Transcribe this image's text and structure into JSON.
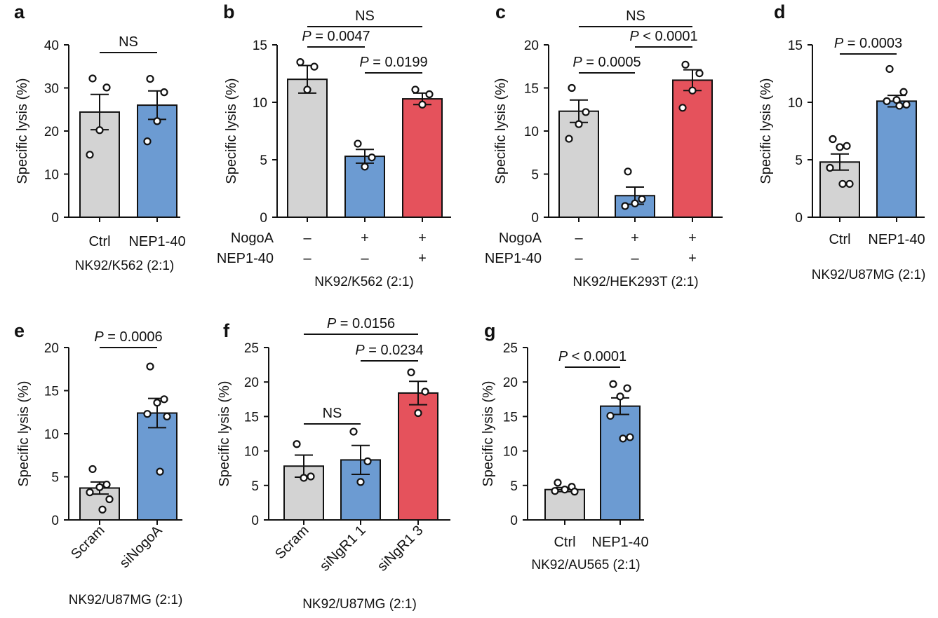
{
  "colors": {
    "grey": "#d3d3d3",
    "blue": "#6c9bd2",
    "red": "#e5525c",
    "ink": "#111111"
  },
  "chart_data": [
    {
      "id": "a",
      "type": "bar",
      "panel_letter": "a",
      "title": "",
      "xlabel": "NK92/K562 (2:1)",
      "ylabel": "Specific lysis (%)",
      "ylim": [
        0,
        40
      ],
      "yticks": [
        "0",
        "10",
        "20",
        "30",
        "40"
      ],
      "categories": [
        "Ctrl",
        "NEP1-40"
      ],
      "category_style": "horizontal",
      "colors": [
        "#d3d3d3",
        "#6c9bd2"
      ],
      "means": [
        24.4,
        26.0
      ],
      "sem": [
        4.1,
        3.3
      ],
      "points": [
        [
          32.2,
          30.1,
          20.2,
          14.5
        ],
        [
          32.1,
          29.0,
          22.3,
          17.6
        ]
      ],
      "comparisons": [
        {
          "from": 0,
          "to": 1,
          "label": "NS",
          "level": 1
        }
      ],
      "row_labels": []
    },
    {
      "id": "b",
      "type": "bar",
      "panel_letter": "b",
      "title": "",
      "xlabel": "NK92/K562 (2:1)",
      "ylabel": "Specific lysis (%)",
      "ylim": [
        0,
        15
      ],
      "yticks": [
        "0",
        "5",
        "10",
        "15"
      ],
      "categories": [
        "",
        "",
        ""
      ],
      "category_style": "none",
      "colors": [
        "#d3d3d3",
        "#6c9bd2",
        "#e5525c"
      ],
      "means": [
        12.0,
        5.3,
        10.3
      ],
      "sem": [
        1.2,
        0.6,
        0.5
      ],
      "points": [
        [
          13.5,
          13.1,
          11.1
        ],
        [
          6.4,
          5.2,
          4.4
        ],
        [
          11.1,
          10.7,
          9.8
        ]
      ],
      "comparisons": [
        {
          "from": 1,
          "to": 2,
          "label": "P = 0.0199",
          "level": 1
        },
        {
          "from": 0,
          "to": 1,
          "label": "P = 0.0047",
          "level": 2
        },
        {
          "from": 0,
          "to": 2,
          "label": "NS",
          "level": 3
        }
      ],
      "row_labels": [
        {
          "name": "NogoA",
          "values": [
            "–",
            "+",
            "+"
          ]
        },
        {
          "name": "NEP1-40",
          "values": [
            "–",
            "–",
            "+"
          ]
        }
      ]
    },
    {
      "id": "c",
      "type": "bar",
      "panel_letter": "c",
      "title": "",
      "xlabel": "NK92/HEK293T (2:1)",
      "ylabel": "Specific lysis (%)",
      "ylim": [
        0,
        20
      ],
      "yticks": [
        "0",
        "5",
        "10",
        "15",
        "20"
      ],
      "categories": [
        "",
        "",
        ""
      ],
      "category_style": "none",
      "colors": [
        "#d3d3d3",
        "#6c9bd2",
        "#e5525c"
      ],
      "means": [
        12.3,
        2.5,
        15.9
      ],
      "sem": [
        1.3,
        1.0,
        1.2
      ],
      "points": [
        [
          15.0,
          12.2,
          10.8,
          9.1
        ],
        [
          5.3,
          2.1,
          1.6,
          1.3
        ],
        [
          17.7,
          16.7,
          14.7,
          12.7
        ]
      ],
      "comparisons": [
        {
          "from": 0,
          "to": 1,
          "label": "P = 0.0005",
          "level": 1
        },
        {
          "from": 1,
          "to": 2,
          "label": "P < 0.0001",
          "level": 2
        },
        {
          "from": 0,
          "to": 2,
          "label": "NS",
          "level": 3
        }
      ],
      "row_labels": [
        {
          "name": "NogoA",
          "values": [
            "–",
            "+",
            "+"
          ]
        },
        {
          "name": "NEP1-40",
          "values": [
            "–",
            "–",
            "+"
          ]
        }
      ]
    },
    {
      "id": "d",
      "type": "bar",
      "panel_letter": "d",
      "title": "",
      "xlabel": "NK92/U87MG (2:1)",
      "ylabel": "Specific lysis (%)",
      "ylim": [
        0,
        15
      ],
      "yticks": [
        "0",
        "5",
        "10",
        "15"
      ],
      "categories": [
        "Ctrl",
        "NEP1-40"
      ],
      "category_style": "horizontal",
      "colors": [
        "#d3d3d3",
        "#6c9bd2"
      ],
      "means": [
        4.8,
        10.1
      ],
      "sem": [
        0.7,
        0.5
      ],
      "points": [
        [
          6.8,
          6.2,
          6.1,
          4.3,
          2.9,
          2.9
        ],
        [
          12.9,
          10.9,
          10.2,
          10.1,
          9.8,
          9.7
        ]
      ],
      "comparisons": [
        {
          "from": 0,
          "to": 1,
          "label": "P = 0.0003",
          "level": 1
        }
      ],
      "row_labels": []
    },
    {
      "id": "e",
      "type": "bar",
      "panel_letter": "e",
      "title": "",
      "xlabel": "NK92/U87MG (2:1)",
      "ylabel": "Specific lysis (%)",
      "ylim": [
        0,
        20
      ],
      "yticks": [
        "0",
        "5",
        "10",
        "15",
        "20"
      ],
      "categories": [
        "Scram",
        "siNogoA"
      ],
      "category_style": "rotated",
      "colors": [
        "#d3d3d3",
        "#6c9bd2"
      ],
      "means": [
        3.7,
        12.4
      ],
      "sem": [
        0.7,
        1.7
      ],
      "points": [
        [
          5.9,
          4.1,
          3.8,
          3.2,
          2.4,
          1.2
        ],
        [
          17.8,
          14.0,
          13.6,
          12.3,
          12.0,
          5.6
        ]
      ],
      "comparisons": [
        {
          "from": 0,
          "to": 1,
          "label": "P = 0.0006",
          "level": 1
        }
      ],
      "row_labels": []
    },
    {
      "id": "f",
      "type": "bar",
      "panel_letter": "f",
      "title": "",
      "xlabel": "NK92/U87MG (2:1)",
      "ylabel": "Specific lysis (%)",
      "ylim": [
        0,
        25
      ],
      "yticks": [
        "0",
        "5",
        "10",
        "15",
        "20",
        "25"
      ],
      "categories": [
        "Scram",
        "siNgR1 1",
        "siNgR1 3"
      ],
      "category_style": "rotated",
      "colors": [
        "#d3d3d3",
        "#6c9bd2",
        "#e5525c"
      ],
      "means": [
        7.8,
        8.7,
        18.4
      ],
      "sem": [
        1.6,
        2.1,
        1.7
      ],
      "points": [
        [
          11.0,
          6.3,
          6.1
        ],
        [
          12.8,
          8.5,
          5.5
        ],
        [
          21.4,
          18.6,
          15.5
        ]
      ],
      "comparisons": [
        {
          "from": 0,
          "to": 1,
          "label": "NS",
          "level": 1
        },
        {
          "from": 1,
          "to": 2,
          "label": "P = 0.0234",
          "level": 2
        },
        {
          "from": 0,
          "to": 2,
          "label": "P = 0.0156",
          "level": 3
        }
      ],
      "row_labels": []
    },
    {
      "id": "g",
      "type": "bar",
      "panel_letter": "g",
      "title": "",
      "xlabel": "NK92/AU565 (2:1)",
      "ylabel": "Specific lysis (%)",
      "ylim": [
        0,
        25
      ],
      "yticks": [
        "0",
        "5",
        "10",
        "15",
        "20",
        "25"
      ],
      "categories": [
        "Ctrl",
        "NEP1-40"
      ],
      "category_style": "horizontal",
      "colors": [
        "#d3d3d3",
        "#6c9bd2"
      ],
      "means": [
        4.4,
        16.5
      ],
      "sem": [
        0.3,
        1.2
      ],
      "points": [
        [
          5.4,
          4.8,
          4.4,
          4.2,
          4.1
        ],
        [
          19.7,
          19.1,
          17.9,
          15.1,
          12.0,
          11.8
        ]
      ],
      "comparisons": [
        {
          "from": 0,
          "to": 1,
          "label": "P < 0.0001",
          "level": 1
        }
      ],
      "row_labels": []
    }
  ]
}
